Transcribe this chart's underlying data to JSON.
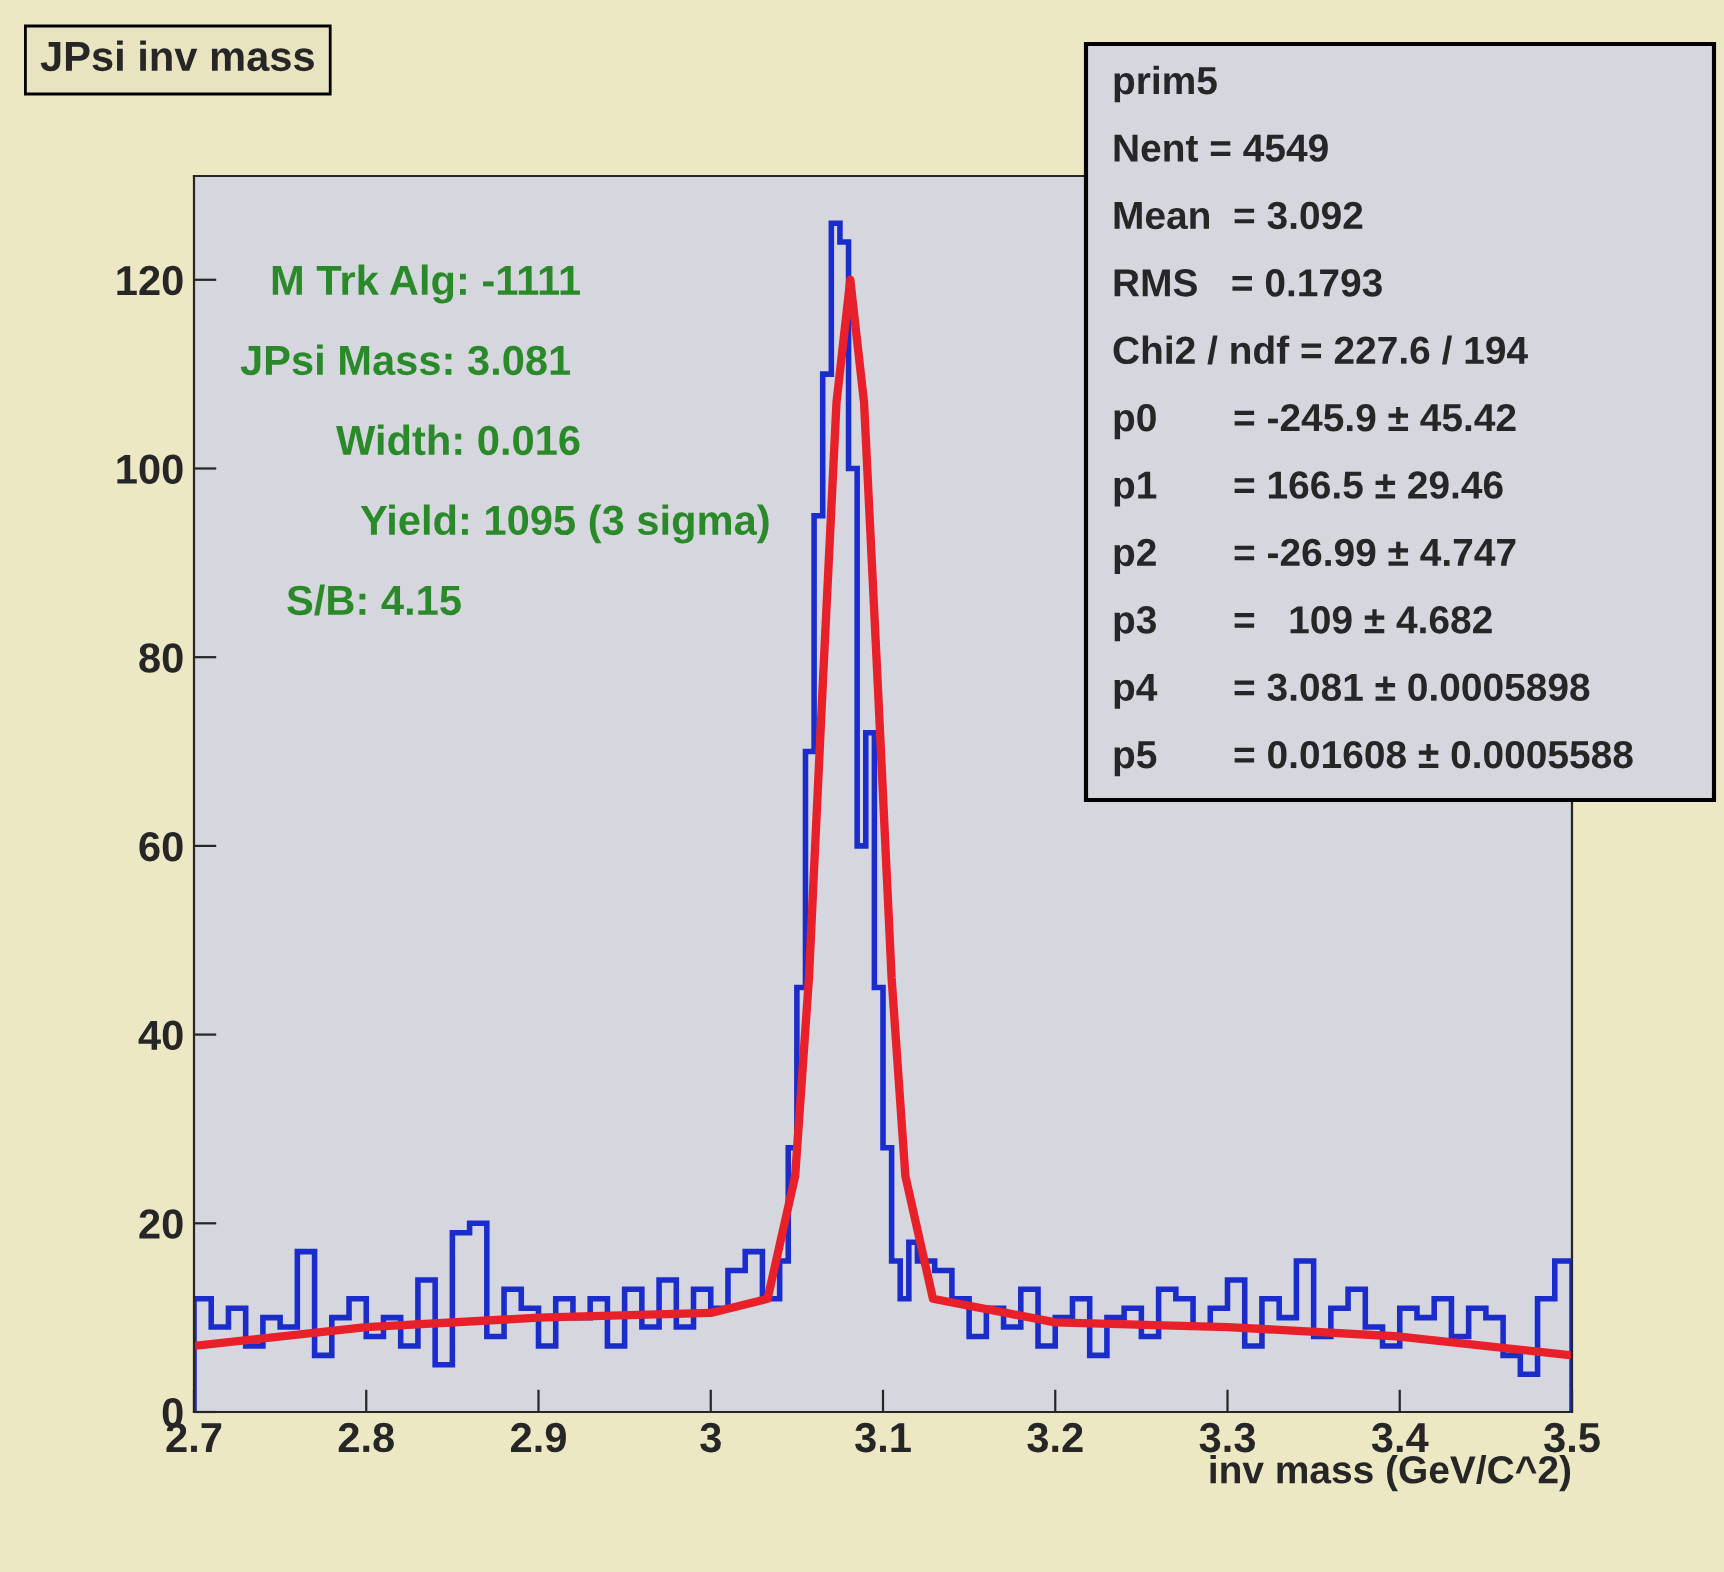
{
  "chart_data": {
    "type": "histogram",
    "title": "JPsi inv mass",
    "xlabel": "inv mass (GeV/C^2)",
    "bins": [
      2.7,
      2.71,
      2.72,
      2.73,
      2.74,
      2.75,
      2.76,
      2.77,
      2.78,
      2.79,
      2.8,
      2.81,
      2.82,
      2.83,
      2.84,
      2.85,
      2.86,
      2.87,
      2.88,
      2.89,
      2.9,
      2.91,
      2.92,
      2.93,
      2.94,
      2.95,
      2.96,
      2.97,
      2.98,
      2.99,
      3.0,
      3.01,
      3.02,
      3.03,
      3.04,
      3.045,
      3.05,
      3.055,
      3.06,
      3.065,
      3.07,
      3.075,
      3.08,
      3.085,
      3.09,
      3.095,
      3.1,
      3.105,
      3.11,
      3.115,
      3.12,
      3.13,
      3.14,
      3.15,
      3.16,
      3.17,
      3.18,
      3.19,
      3.2,
      3.21,
      3.22,
      3.23,
      3.24,
      3.25,
      3.26,
      3.27,
      3.28,
      3.29,
      3.3,
      3.31,
      3.32,
      3.33,
      3.34,
      3.35,
      3.36,
      3.37,
      3.38,
      3.39,
      3.4,
      3.41,
      3.42,
      3.43,
      3.44,
      3.45,
      3.46,
      3.47,
      3.48,
      3.49,
      3.5
    ],
    "series": [
      {
        "color": "#1a2ccc",
        "values": [
          12,
          9,
          11,
          7,
          10,
          9,
          17,
          6,
          10,
          12,
          8,
          10,
          7,
          14,
          5,
          19,
          20,
          8,
          13,
          11,
          7,
          12,
          10,
          12,
          7,
          13,
          9,
          14,
          9,
          13,
          11,
          15,
          17,
          12,
          16,
          28,
          45,
          70,
          95,
          110,
          126,
          124,
          100,
          60,
          72,
          45,
          28,
          16,
          12,
          18,
          16,
          15,
          12,
          8,
          11,
          9,
          13,
          7,
          10,
          12,
          6,
          10,
          11,
          8,
          13,
          12,
          9,
          11,
          14,
          7,
          12,
          10,
          16,
          8,
          11,
          13,
          9,
          7,
          11,
          10,
          12,
          8,
          11,
          10,
          6,
          4,
          12,
          16
        ]
      },
      {
        "type": "line",
        "color": "#e8202a",
        "x": [
          2.7,
          2.8,
          2.9,
          3.0,
          3.033,
          3.049,
          3.057,
          3.065,
          3.073,
          3.081,
          3.089,
          3.097,
          3.105,
          3.113,
          3.129,
          3.2,
          3.3,
          3.4,
          3.5
        ],
        "values": [
          7,
          9,
          10,
          10.5,
          12,
          25,
          46,
          77,
          107,
          120,
          107,
          77,
          46,
          25,
          12,
          9.5,
          9,
          8,
          6
        ]
      }
    ],
    "xlim": [
      2.7,
      3.5
    ],
    "xticks": [
      2.7,
      2.8,
      2.9,
      {
        "value": 3.0,
        "label": "3"
      },
      3.1,
      3.2,
      3.3,
      3.4,
      3.5
    ],
    "ylim": [
      0,
      131
    ],
    "yticks": [
      0,
      20,
      40,
      60,
      80,
      100,
      120
    ],
    "grid": false,
    "legend": false,
    "annotations": [
      "M Trk Alg: -1111",
      "JPsi Mass: 3.081",
      "Width: 0.016",
      "Yield: 1095 (3 sigma)",
      "S/B: 4.15",
      "prim5",
      "Nent = 4549",
      "Mean  = 3.092",
      "RMS   = 0.1793",
      "Chi2 / ndf = 227.6 / 194",
      "p0       = -245.9 ± 45.42",
      "p1       = 166.5 ± 29.46",
      "p2       = -26.99 ± 4.747",
      "p3       =   109 ± 4.682",
      "p4       = 3.081 ± 0.0005898",
      "p5       = 0.01608 ± 0.0005588"
    ]
  }
}
